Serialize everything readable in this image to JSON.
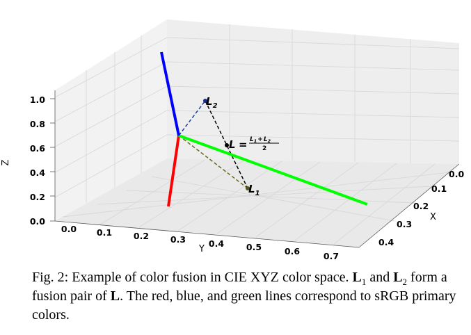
{
  "figure": {
    "x_axis": {
      "label": "X",
      "ticks": [
        "0.0",
        "0.1",
        "0.2",
        "0.3",
        "0.4"
      ]
    },
    "y_axis": {
      "label": "Y",
      "ticks": [
        "0.0",
        "0.1",
        "0.2",
        "0.3",
        "0.4",
        "0.5",
        "0.6",
        "0.7"
      ]
    },
    "z_axis": {
      "label": "Z",
      "ticks": [
        "0.0",
        "0.2",
        "0.4",
        "0.6",
        "0.8",
        "1.0"
      ]
    },
    "lines": {
      "red_color": "#ff0000",
      "green_color": "#00ff00",
      "blue_color": "#0000ff"
    },
    "points": {
      "l2_label": "L",
      "l2_sub": "2",
      "l1_label": "L",
      "l1_sub": "1",
      "l_label": "L",
      "l_eq": "=",
      "frac_num_l1": "L",
      "frac_num_l1_sub": "1",
      "frac_plus": "+",
      "frac_num_l2": "L",
      "frac_num_l2_sub": "2",
      "frac_den": "2"
    }
  },
  "caption": {
    "part1": "Fig. 2: Example of color fusion in CIE XYZ color space. ",
    "l1": "L",
    "l1_sub": "1",
    "part2": " and ",
    "l2": "L",
    "l2_sub": "2",
    "part3": " form a fusion pair of ",
    "l": "L",
    "part4": ". The red, blue, and green lines correspond to sRGB primary colors."
  }
}
